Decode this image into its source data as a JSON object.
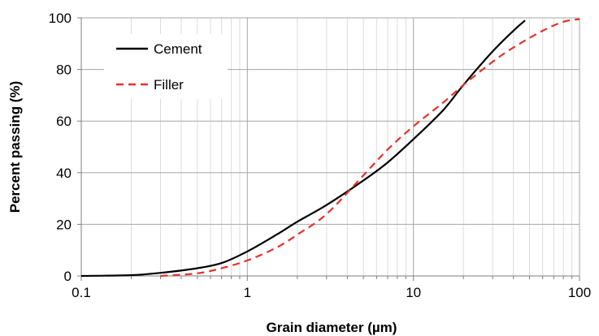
{
  "chart_data": {
    "type": "line",
    "xlabel": "Grain diameter (µm)",
    "ylabel": "Percent passing (%)",
    "xscale": "log",
    "xlim": [
      0.1,
      100
    ],
    "ylim": [
      0,
      100
    ],
    "x_ticks": [
      "0.1",
      "1",
      "10",
      "100"
    ],
    "y_ticks": [
      "0",
      "20",
      "40",
      "60",
      "80",
      "100"
    ],
    "grid": true,
    "legend_position": "top-left",
    "series": [
      {
        "name": "Cement",
        "color": "#000000",
        "line_style": "solid",
        "x": [
          0.1,
          0.2,
          0.3,
          0.5,
          0.7,
          1.0,
          1.5,
          2.0,
          3.0,
          5.0,
          7.0,
          10.0,
          15.0,
          20.0,
          30.0,
          40.0,
          47.0
        ],
        "y": [
          0,
          0.3,
          1.2,
          3,
          5,
          9.5,
          16,
          21,
          27.5,
          37,
          44,
          53,
          64,
          74,
          87,
          95,
          99
        ]
      },
      {
        "name": "Filler",
        "color": "#e8302a",
        "line_style": "dashed",
        "x": [
          0.3,
          0.5,
          0.7,
          1.0,
          1.5,
          2.0,
          3.0,
          5.0,
          7.0,
          10.0,
          15.0,
          20.0,
          30.0,
          40.0,
          60.0,
          80.0,
          100.0
        ],
        "y": [
          0,
          1,
          3,
          6,
          11,
          16,
          24,
          39,
          49,
          58,
          67,
          74,
          83,
          88.5,
          95,
          98.5,
          99.5
        ]
      }
    ]
  }
}
